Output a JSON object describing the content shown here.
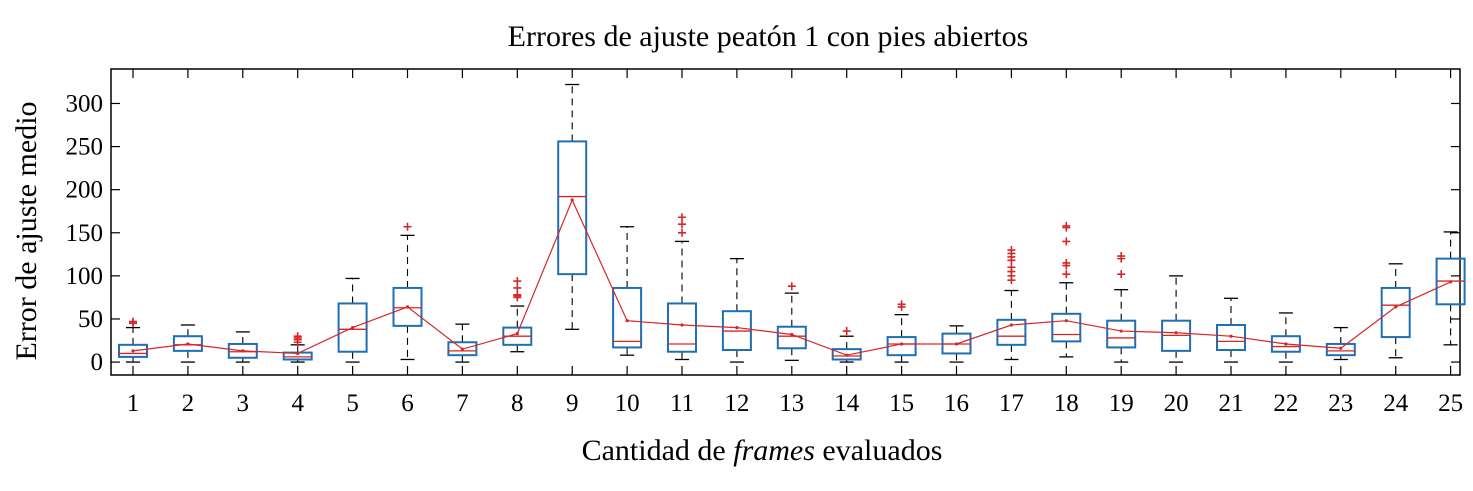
{
  "chart_data": {
    "type": "box",
    "title": "Errores de ajuste peatón 1 con pies abiertos",
    "xlabel_prefix": "Cantidad de ",
    "xlabel_italic": "frames",
    "xlabel_suffix": " evaluados",
    "ylabel": "Error de ajuste medio",
    "ylim": [
      -15,
      340
    ],
    "yticks": [
      0,
      50,
      100,
      150,
      200,
      250,
      300
    ],
    "grid": false,
    "colors": {
      "box": "#1f6fb5",
      "median": "#d62728",
      "mean_line": "#d62728",
      "outlier": "#d62728",
      "whisker": "#000000"
    },
    "categories": [
      "1",
      "2",
      "3",
      "4",
      "5",
      "6",
      "7",
      "8",
      "9",
      "10",
      "11",
      "12",
      "13",
      "14",
      "15",
      "16",
      "17",
      "18",
      "19",
      "20",
      "21",
      "22",
      "23",
      "24",
      "25"
    ],
    "boxes": [
      {
        "low": 0,
        "q1": 6,
        "median": 10,
        "q3": 20,
        "high": 40,
        "outliers": [
          45,
          47
        ]
      },
      {
        "low": 0,
        "q1": 13,
        "median": 20,
        "q3": 30,
        "high": 43,
        "outliers": []
      },
      {
        "low": 0,
        "q1": 5,
        "median": 12,
        "q3": 21,
        "high": 35,
        "outliers": []
      },
      {
        "low": 0,
        "q1": 3,
        "median": 6,
        "q3": 11,
        "high": 20,
        "outliers": [
          23,
          26,
          28,
          30
        ]
      },
      {
        "low": 0,
        "q1": 12,
        "median": 38,
        "q3": 68,
        "high": 97,
        "outliers": []
      },
      {
        "low": 3,
        "q1": 42,
        "median": 63,
        "q3": 86,
        "high": 147,
        "outliers": [
          157
        ]
      },
      {
        "low": 0,
        "q1": 8,
        "median": 13,
        "q3": 23,
        "high": 44,
        "outliers": []
      },
      {
        "low": 12,
        "q1": 20,
        "median": 30,
        "q3": 40,
        "high": 65,
        "outliers": [
          75,
          77,
          78,
          86,
          94
        ]
      },
      {
        "low": 38,
        "q1": 102,
        "median": 192,
        "q3": 256,
        "high": 322,
        "outliers": []
      },
      {
        "low": 8,
        "q1": 17,
        "median": 24,
        "q3": 86,
        "high": 157,
        "outliers": []
      },
      {
        "low": 3,
        "q1": 12,
        "median": 21,
        "q3": 68,
        "high": 140,
        "outliers": [
          150,
          160,
          168
        ]
      },
      {
        "low": 0,
        "q1": 14,
        "median": 36,
        "q3": 59,
        "high": 120,
        "outliers": []
      },
      {
        "low": 2,
        "q1": 16,
        "median": 30,
        "q3": 41,
        "high": 80,
        "outliers": [
          88
        ]
      },
      {
        "low": 0,
        "q1": 3,
        "median": 7,
        "q3": 15,
        "high": 30,
        "outliers": [
          36
        ]
      },
      {
        "low": 0,
        "q1": 8,
        "median": 21,
        "q3": 29,
        "high": 55,
        "outliers": [
          64,
          67
        ]
      },
      {
        "low": 0,
        "q1": 10,
        "median": 21,
        "q3": 33,
        "high": 42,
        "outliers": []
      },
      {
        "low": 3,
        "q1": 20,
        "median": 30,
        "q3": 49,
        "high": 83,
        "outliers": [
          95,
          100,
          105,
          110,
          118,
          122,
          126,
          130
        ]
      },
      {
        "low": 6,
        "q1": 24,
        "median": 32,
        "q3": 56,
        "high": 92,
        "outliers": [
          102,
          112,
          115,
          140,
          156,
          158
        ]
      },
      {
        "low": 0,
        "q1": 17,
        "median": 28,
        "q3": 48,
        "high": 84,
        "outliers": [
          102,
          120,
          123
        ]
      },
      {
        "low": 0,
        "q1": 13,
        "median": 31,
        "q3": 48,
        "high": 100,
        "outliers": []
      },
      {
        "low": 0,
        "q1": 14,
        "median": 24,
        "q3": 43,
        "high": 74,
        "outliers": []
      },
      {
        "low": 0,
        "q1": 12,
        "median": 18,
        "q3": 30,
        "high": 57,
        "outliers": []
      },
      {
        "low": 3,
        "q1": 8,
        "median": 13,
        "q3": 21,
        "high": 40,
        "outliers": []
      },
      {
        "low": 5,
        "q1": 29,
        "median": 66,
        "q3": 86,
        "high": 114,
        "outliers": []
      },
      {
        "low": 20,
        "q1": 67,
        "median": 94,
        "q3": 120,
        "high": 151,
        "outliers": []
      }
    ],
    "means": [
      13,
      21,
      13,
      10,
      40,
      64,
      15,
      33,
      188,
      48,
      43,
      40,
      32,
      8,
      21,
      21,
      43,
      48,
      36,
      34,
      30,
      21,
      16,
      64,
      93
    ]
  }
}
